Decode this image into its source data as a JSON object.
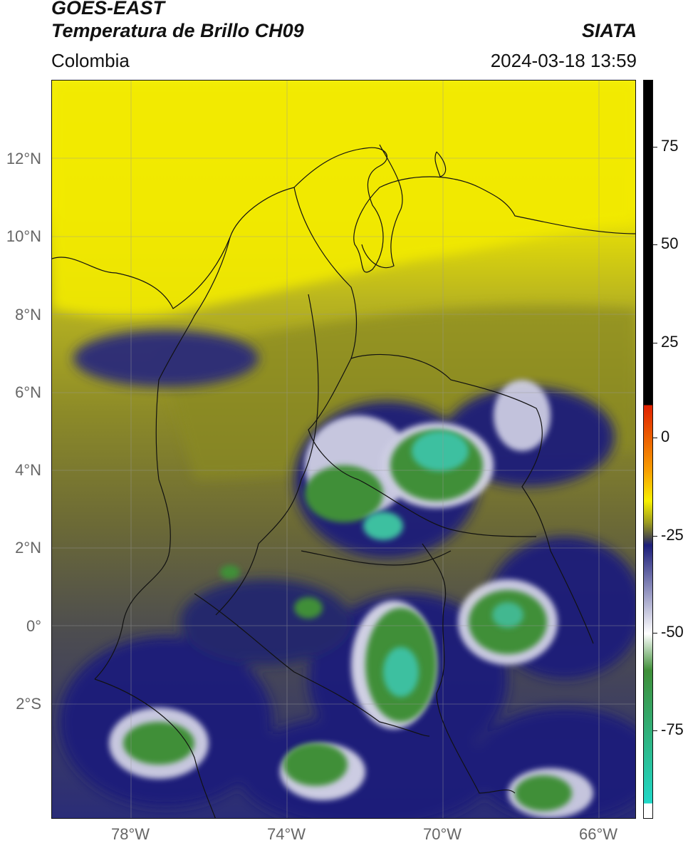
{
  "header": {
    "title_line1": "GOES-EAST",
    "title_line2": "Temperatura de Brillo CH09",
    "source": "SIATA",
    "region": "Colombia",
    "timestamp": "2024-03-18 13:59"
  },
  "map": {
    "lat_labels": [
      "12°N",
      "10°N",
      "8°N",
      "6°N",
      "4°N",
      "2°N",
      "0°",
      "2°S"
    ],
    "lon_labels": [
      "78°W",
      "74°W",
      "70°W",
      "66°W"
    ],
    "colors": {
      "warm": "#f8f000",
      "olive": "#8a8a22",
      "dark_olive": "#5d5d38",
      "navy": "#1c1e7a",
      "white": "#e8e8f0",
      "green": "#3f8f38",
      "teal": "#3cc0a0",
      "coast": "#111111"
    }
  },
  "colorbar": {
    "labels": [
      "75",
      "50",
      "25",
      "0",
      "-25",
      "-50",
      "-75"
    ],
    "colors": [
      "#000000",
      "#e02000",
      "#f8a000",
      "#f8f000",
      "#9a9a20",
      "#4a4a4a",
      "#1c1e7a",
      "#ffffff",
      "#3f8f38",
      "#20d8c8",
      "#ffffff"
    ]
  }
}
